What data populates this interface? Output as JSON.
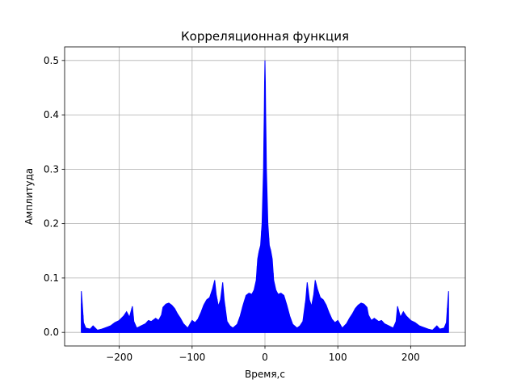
{
  "chart_data": {
    "type": "line",
    "title": "Корреляционная функция",
    "xlabel": "Время,с",
    "ylabel": "Амплитуда",
    "xlim": [
      -275,
      275
    ],
    "ylim": [
      -0.025,
      0.525
    ],
    "xticks": [
      -200,
      -100,
      0,
      100,
      200
    ],
    "xtick_labels": [
      "−200",
      "−100",
      "0",
      "100",
      "200"
    ],
    "yticks": [
      0.0,
      0.1,
      0.2,
      0.3,
      0.4,
      0.5
    ],
    "ytick_labels": [
      "0.0",
      "0.1",
      "0.2",
      "0.3",
      "0.4",
      "0.5"
    ],
    "grid": true,
    "line_color": "#0000ff",
    "series": [
      {
        "envelope": {
          "x": [
            -252,
            -251,
            -249,
            -246,
            -240,
            -236,
            -230,
            -224,
            -216,
            -212,
            -206,
            -200,
            -194,
            -190,
            -186,
            -182,
            -180,
            -176,
            -170,
            -164,
            -160,
            -156,
            -150,
            -146,
            -142,
            -140,
            -136,
            -132,
            -128,
            -124,
            -120,
            -116,
            -112,
            -106,
            -100,
            -96,
            -92,
            -88,
            -84,
            -80,
            -76,
            -72,
            -69,
            -67,
            -64,
            -61,
            -58,
            -56,
            -52,
            -48,
            -44,
            -38,
            -34,
            -30,
            -26,
            -22,
            -18,
            -15,
            -12,
            -10,
            -8,
            -6,
            -4,
            -3,
            -2,
            -1.5,
            -1,
            -0.5,
            0,
            0.5,
            1,
            1.5,
            2,
            3,
            4,
            6,
            8,
            10,
            12,
            15,
            18,
            22,
            26,
            30,
            34,
            38,
            44,
            48,
            52,
            56,
            58,
            61,
            64,
            67,
            69,
            72,
            76,
            80,
            84,
            88,
            92,
            96,
            100,
            106,
            112,
            116,
            120,
            124,
            128,
            132,
            136,
            140,
            142,
            146,
            150,
            156,
            160,
            164,
            170,
            176,
            180,
            182,
            186,
            190,
            194,
            200,
            206,
            212,
            216,
            224,
            230,
            236,
            240,
            246,
            249,
            251,
            252
          ],
          "y": [
            0.076,
            0.058,
            0.018,
            0.008,
            0.006,
            0.012,
            0.004,
            0.006,
            0.01,
            0.012,
            0.018,
            0.022,
            0.03,
            0.038,
            0.028,
            0.048,
            0.02,
            0.008,
            0.012,
            0.016,
            0.022,
            0.02,
            0.026,
            0.022,
            0.032,
            0.046,
            0.052,
            0.054,
            0.05,
            0.044,
            0.034,
            0.026,
            0.016,
            0.008,
            0.022,
            0.018,
            0.024,
            0.036,
            0.05,
            0.06,
            0.064,
            0.08,
            0.096,
            0.07,
            0.048,
            0.06,
            0.092,
            0.06,
            0.02,
            0.012,
            0.008,
            0.015,
            0.03,
            0.05,
            0.068,
            0.072,
            0.07,
            0.078,
            0.096,
            0.135,
            0.15,
            0.16,
            0.2,
            0.25,
            0.3,
            0.35,
            0.4,
            0.46,
            0.5,
            0.46,
            0.4,
            0.35,
            0.3,
            0.25,
            0.2,
            0.16,
            0.15,
            0.135,
            0.096,
            0.078,
            0.07,
            0.072,
            0.068,
            0.05,
            0.03,
            0.015,
            0.008,
            0.012,
            0.02,
            0.06,
            0.092,
            0.06,
            0.048,
            0.07,
            0.096,
            0.08,
            0.064,
            0.06,
            0.05,
            0.036,
            0.024,
            0.018,
            0.022,
            0.008,
            0.016,
            0.026,
            0.034,
            0.044,
            0.05,
            0.054,
            0.052,
            0.046,
            0.032,
            0.022,
            0.026,
            0.02,
            0.022,
            0.016,
            0.012,
            0.008,
            0.02,
            0.048,
            0.028,
            0.038,
            0.03,
            0.022,
            0.018,
            0.012,
            0.01,
            0.006,
            0.004,
            0.012,
            0.006,
            0.008,
            0.018,
            0.058,
            0.076
          ]
        }
      }
    ]
  }
}
